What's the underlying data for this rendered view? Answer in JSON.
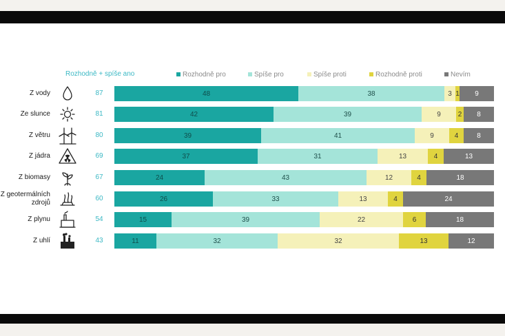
{
  "header": {
    "sum_label": "Rozhodně + spíše ano"
  },
  "colors": {
    "rozhodne_pro": "#1aa6a1",
    "spise_pro": "#a4e4d9",
    "spise_proti": "#f5f1b9",
    "rozhodne_proti": "#e0d43f",
    "nevim": "#787878"
  },
  "legend": [
    {
      "label": "Rozhodně pro",
      "color": "#1aa6a1"
    },
    {
      "label": "Spíše pro",
      "color": "#a4e4d9"
    },
    {
      "label": "Spíše proti",
      "color": "#f5f1b9"
    },
    {
      "label": "Rozhodně proti",
      "color": "#e0d43f"
    },
    {
      "label": "Nevím",
      "color": "#787878"
    }
  ],
  "chart_data": {
    "type": "bar",
    "orientation": "horizontal",
    "stacked": true,
    "categories": [
      "Z vody",
      "Ze slunce",
      "Z větru",
      "Z jádra",
      "Z biomasy",
      "Z geotermálních zdrojů",
      "Z plynu",
      "Z uhlí"
    ],
    "icons": [
      "water-drop-icon",
      "sun-icon",
      "wind-turbine-icon",
      "radiation-icon",
      "plant-icon",
      "geothermal-icon",
      "gas-plant-icon",
      "coal-plant-icon"
    ],
    "sum_values": [
      87,
      81,
      80,
      69,
      67,
      60,
      54,
      43
    ],
    "series": [
      {
        "name": "Rozhodně pro",
        "values": [
          48,
          42,
          39,
          37,
          24,
          26,
          15,
          11
        ]
      },
      {
        "name": "Spíše pro",
        "values": [
          38,
          39,
          41,
          31,
          43,
          33,
          39,
          32
        ]
      },
      {
        "name": "Spíše proti",
        "values": [
          3,
          9,
          9,
          13,
          12,
          13,
          22,
          32
        ]
      },
      {
        "name": "Rozhodně proti",
        "values": [
          1,
          2,
          4,
          4,
          4,
          4,
          6,
          13
        ]
      },
      {
        "name": "Nevím",
        "values": [
          9,
          8,
          8,
          13,
          18,
          24,
          18,
          12
        ]
      }
    ],
    "xlim": [
      0,
      100
    ]
  }
}
